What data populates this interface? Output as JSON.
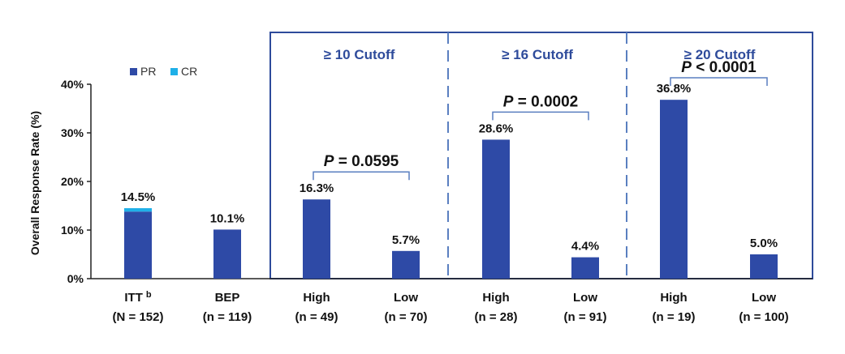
{
  "chart_data": {
    "type": "bar",
    "ylabel": "Overall Response Rate (%)",
    "ylim": [
      0,
      40
    ],
    "yticks": [
      "0%",
      "10%",
      "20%",
      "30%",
      "40%"
    ],
    "legend": {
      "placement": "top-left",
      "entries": [
        "PR",
        "CR"
      ]
    },
    "colors": {
      "PR": "#2e4aa6",
      "CR": "#1fb0e8",
      "frame": "#2e4b9b",
      "bracket": "#5a7fc0"
    },
    "categories": [
      {
        "label": "ITT",
        "superscript": "b",
        "n": "(N = 152)"
      },
      {
        "label": "BEP",
        "superscript": "",
        "n": "(n = 119)"
      },
      {
        "label": "High",
        "superscript": "",
        "n": "(n = 49)"
      },
      {
        "label": "Low",
        "superscript": "",
        "n": "(n = 70)"
      },
      {
        "label": "High",
        "superscript": "",
        "n": "(n = 28)"
      },
      {
        "label": "Low",
        "superscript": "",
        "n": "(n = 91)"
      },
      {
        "label": "High",
        "superscript": "",
        "n": "(n = 19)"
      },
      {
        "label": "Low",
        "superscript": "",
        "n": "(n = 100)"
      }
    ],
    "series": [
      {
        "name": "PR",
        "values": [
          13.8,
          10.1,
          16.3,
          5.7,
          28.6,
          4.4,
          36.8,
          5.0
        ]
      },
      {
        "name": "CR",
        "values": [
          0.7,
          0,
          0,
          0,
          0,
          0,
          0,
          0
        ]
      }
    ],
    "value_labels": [
      "14.5%",
      "10.1%",
      "16.3%",
      "5.7%",
      "28.6%",
      "4.4%",
      "36.8%",
      "5.0%"
    ],
    "groups": [
      {
        "title": "≥ 10 Cutoff",
        "p_prefix": "P",
        "p_rest": " = 0.0595",
        "bars": [
          2,
          3
        ]
      },
      {
        "title": "≥ 16 Cutoff",
        "p_prefix": "P",
        "p_rest": " = 0.0002",
        "bars": [
          4,
          5
        ]
      },
      {
        "title": "≥ 20 Cutoff",
        "p_prefix": "P",
        "p_rest": " < 0.0001",
        "bars": [
          6,
          7
        ]
      }
    ]
  }
}
